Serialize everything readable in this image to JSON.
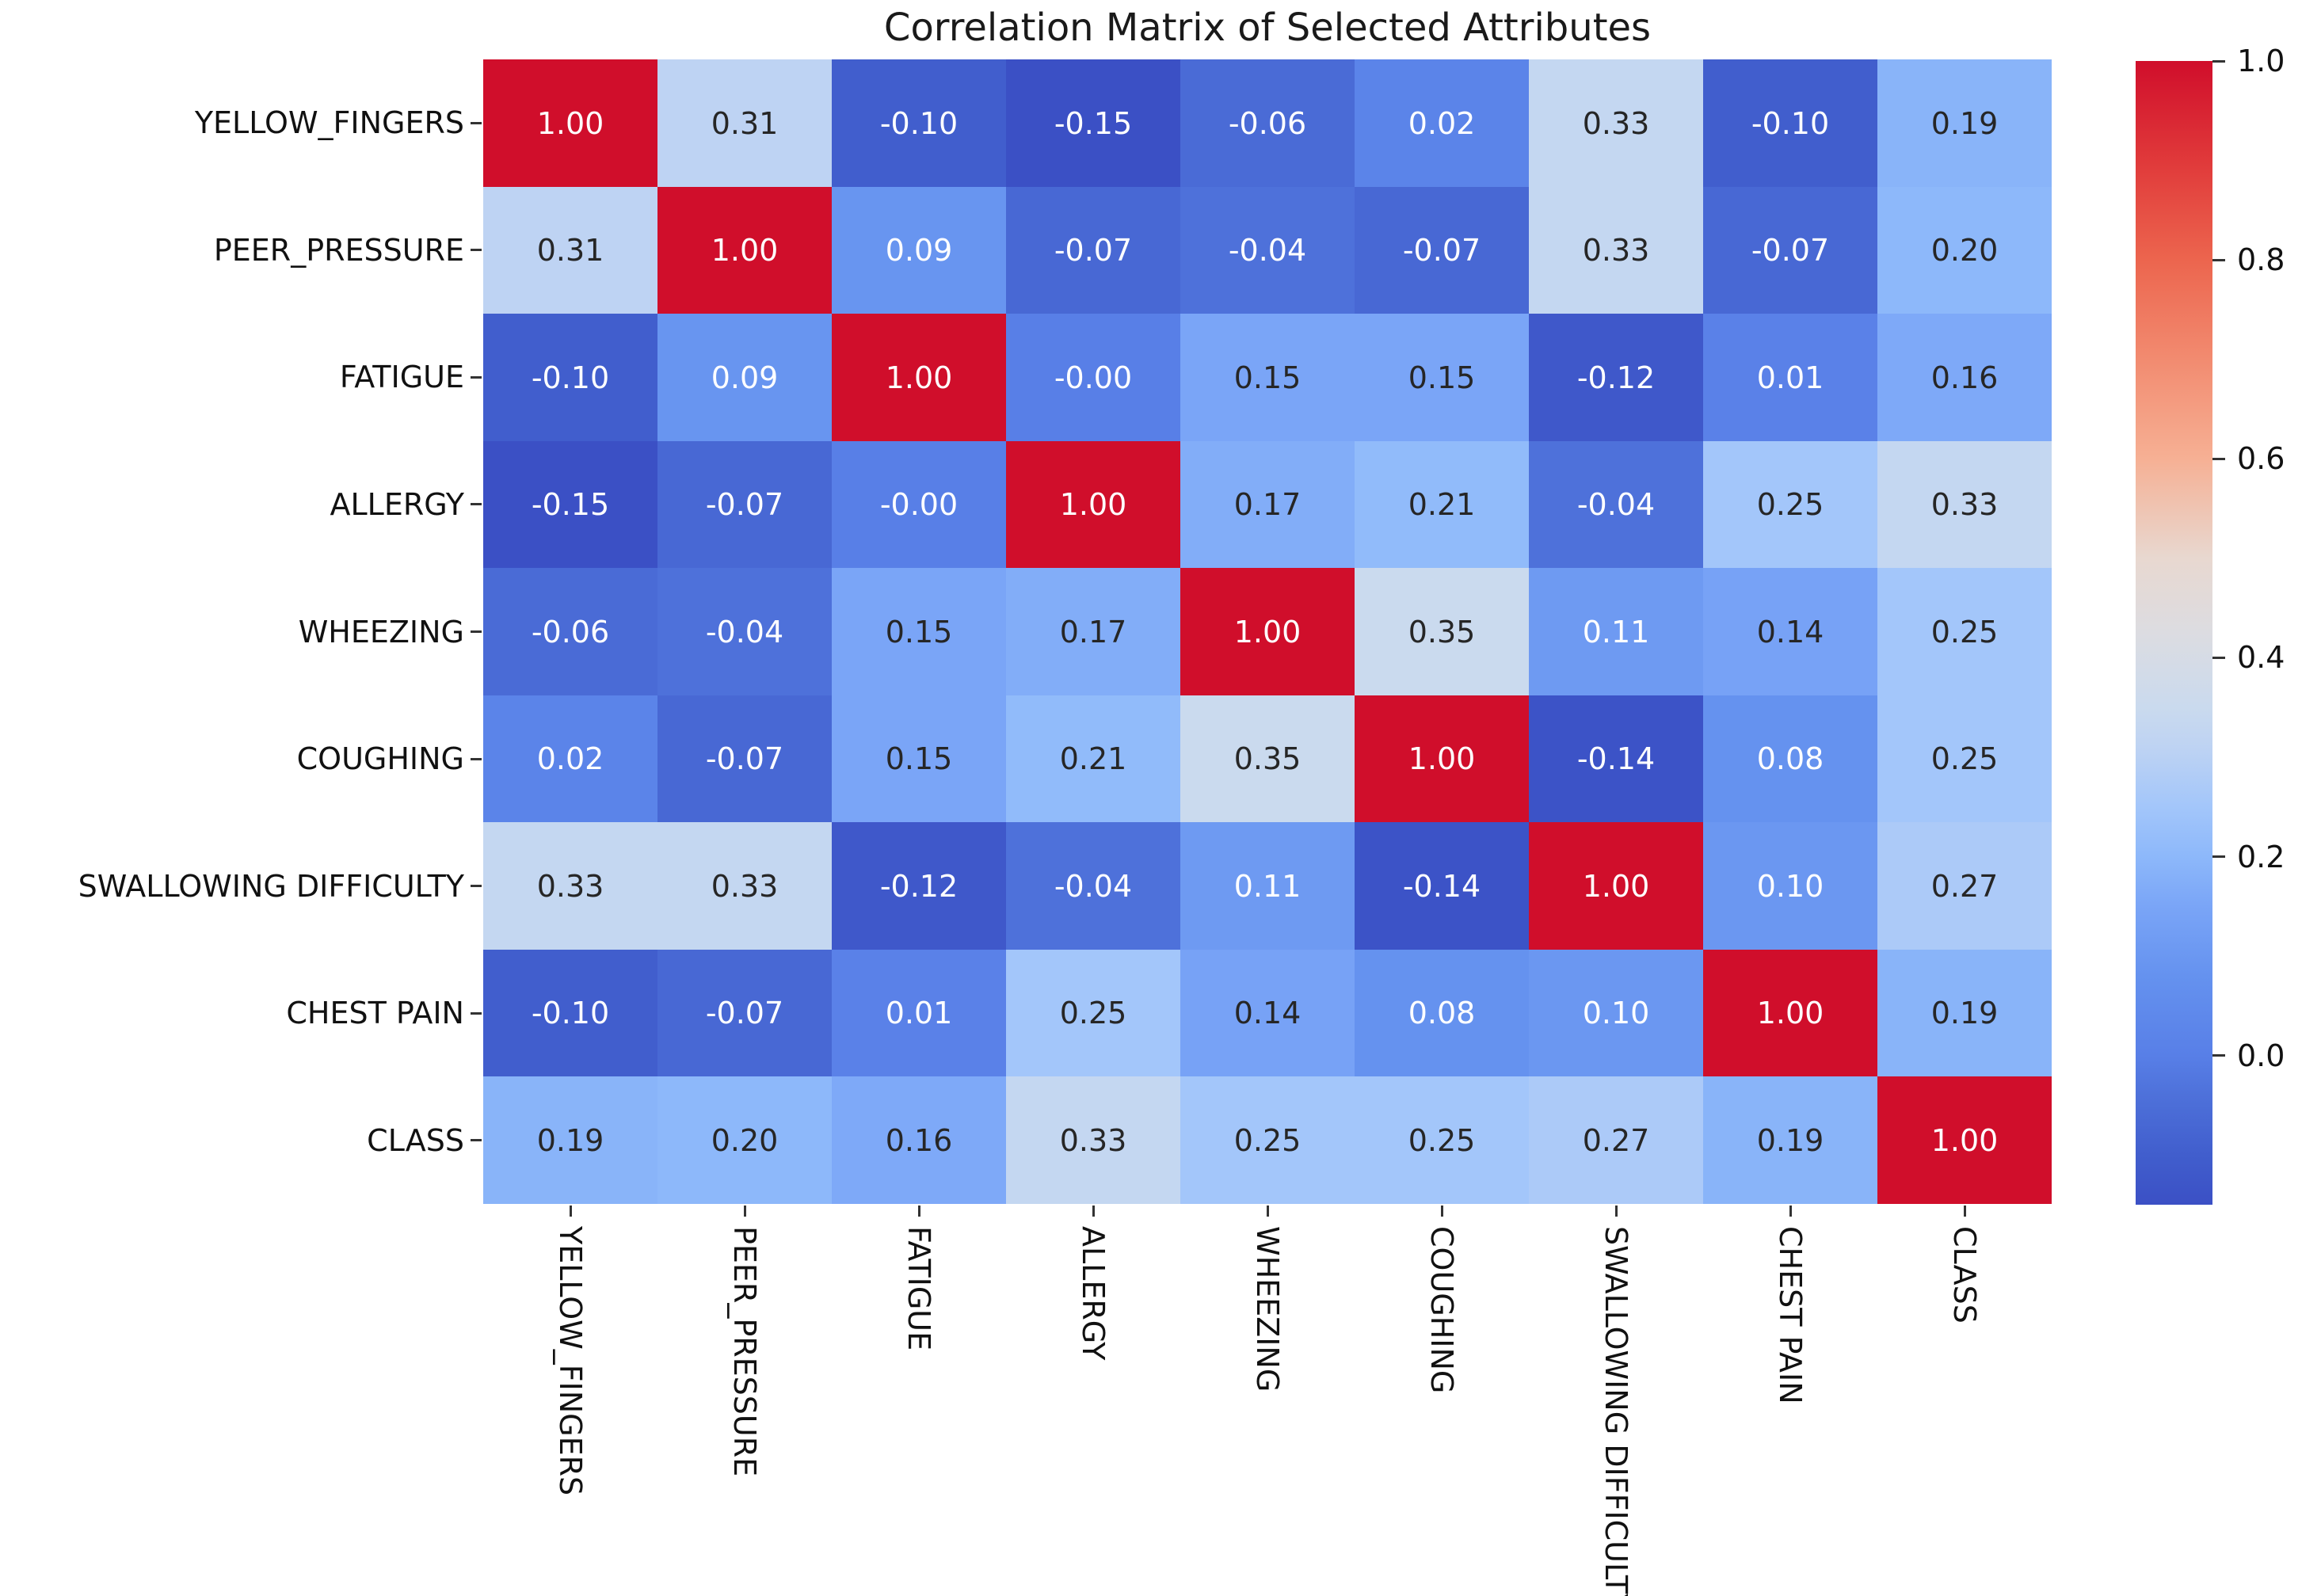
{
  "figure": {
    "background": "#ffffff"
  },
  "chart_data": {
    "type": "heatmap",
    "title": "Correlation Matrix of Selected Attributes",
    "categories": [
      "YELLOW_FINGERS",
      "PEER_PRESSURE",
      "FATIGUE",
      "ALLERGY",
      "WHEEZING",
      "COUGHING",
      "SWALLOWING DIFFICULTY",
      "CHEST PAIN",
      "CLASS"
    ],
    "matrix": [
      [
        1.0,
        0.31,
        -0.1,
        -0.15,
        -0.06,
        0.02,
        0.33,
        -0.1,
        0.19
      ],
      [
        0.31,
        1.0,
        0.09,
        -0.07,
        -0.04,
        -0.07,
        0.33,
        -0.07,
        0.2
      ],
      [
        -0.1,
        0.09,
        1.0,
        -0.0,
        0.15,
        0.15,
        -0.12,
        0.01,
        0.16
      ],
      [
        -0.15,
        -0.07,
        -0.0,
        1.0,
        0.17,
        0.21,
        -0.04,
        0.25,
        0.33
      ],
      [
        -0.06,
        -0.04,
        0.15,
        0.17,
        1.0,
        0.35,
        0.11,
        0.14,
        0.25
      ],
      [
        0.02,
        -0.07,
        0.15,
        0.21,
        0.35,
        1.0,
        -0.14,
        0.08,
        0.25
      ],
      [
        0.33,
        0.33,
        -0.12,
        -0.04,
        0.11,
        -0.14,
        1.0,
        0.1,
        0.27
      ],
      [
        -0.1,
        -0.07,
        0.01,
        0.25,
        0.14,
        0.08,
        0.1,
        1.0,
        0.19
      ],
      [
        0.19,
        0.2,
        0.16,
        0.33,
        0.25,
        0.25,
        0.27,
        0.19,
        1.0
      ]
    ],
    "cell_labels": [
      [
        "1.00",
        "0.31",
        "-0.10",
        "-0.15",
        "-0.06",
        "0.02",
        "0.33",
        "-0.10",
        "0.19"
      ],
      [
        "0.31",
        "1.00",
        "0.09",
        "-0.07",
        "-0.04",
        "-0.07",
        "0.33",
        "-0.07",
        "0.20"
      ],
      [
        "-0.10",
        "0.09",
        "1.00",
        "-0.00",
        "0.15",
        "0.15",
        "-0.12",
        "0.01",
        "0.16"
      ],
      [
        "-0.15",
        "-0.07",
        "-0.00",
        "1.00",
        "0.17",
        "0.21",
        "-0.04",
        "0.25",
        "0.33"
      ],
      [
        "-0.06",
        "-0.04",
        "0.15",
        "0.17",
        "1.00",
        "0.35",
        "0.11",
        "0.14",
        "0.25"
      ],
      [
        "0.02",
        "-0.07",
        "0.15",
        "0.21",
        "0.35",
        "1.00",
        "-0.14",
        "0.08",
        "0.25"
      ],
      [
        "0.33",
        "0.33",
        "-0.12",
        "-0.04",
        "0.11",
        "-0.14",
        "1.00",
        "0.10",
        "0.27"
      ],
      [
        "-0.10",
        "-0.07",
        "0.01",
        "0.25",
        "0.14",
        "0.08",
        "0.10",
        "1.00",
        "0.19"
      ],
      [
        "0.19",
        "0.20",
        "0.16",
        "0.33",
        "0.25",
        "0.25",
        "0.27",
        "0.19",
        "1.00"
      ]
    ],
    "colorbar": {
      "position": "right",
      "vmin": -0.15,
      "vmax": 1.0,
      "tick_values": [
        1.0,
        0.8,
        0.6,
        0.4,
        0.2,
        0.0
      ],
      "tick_labels": [
        "1.0",
        "0.8",
        "0.6",
        "0.4",
        "0.2",
        "0.0"
      ]
    },
    "style": {
      "colormap_name": "coolwarm",
      "colormap_anchors": [
        [
          -0.15,
          "#3b50c5"
        ],
        [
          -0.1,
          "#415ecd"
        ],
        [
          -0.04,
          "#4e71da"
        ],
        [
          0.0,
          "#587fe7"
        ],
        [
          0.08,
          "#6592ef"
        ],
        [
          0.15,
          "#7aa5f7"
        ],
        [
          0.2,
          "#8db8fa"
        ],
        [
          0.25,
          "#a3c6fa"
        ],
        [
          0.31,
          "#bed3f3"
        ],
        [
          0.35,
          "#cadaee"
        ],
        [
          0.425,
          "#dcdce1"
        ],
        [
          0.5,
          "#e8d8d0"
        ],
        [
          0.6,
          "#f6b094"
        ],
        [
          0.7,
          "#f28b70"
        ],
        [
          0.8,
          "#ec654e"
        ],
        [
          0.9,
          "#e0393a"
        ],
        [
          1.0,
          "#d00e2b"
        ]
      ],
      "annot_color_dark": "#262626",
      "annot_color_light": "#ffffff",
      "white_text_below_value": 0.12,
      "grid": false
    }
  }
}
